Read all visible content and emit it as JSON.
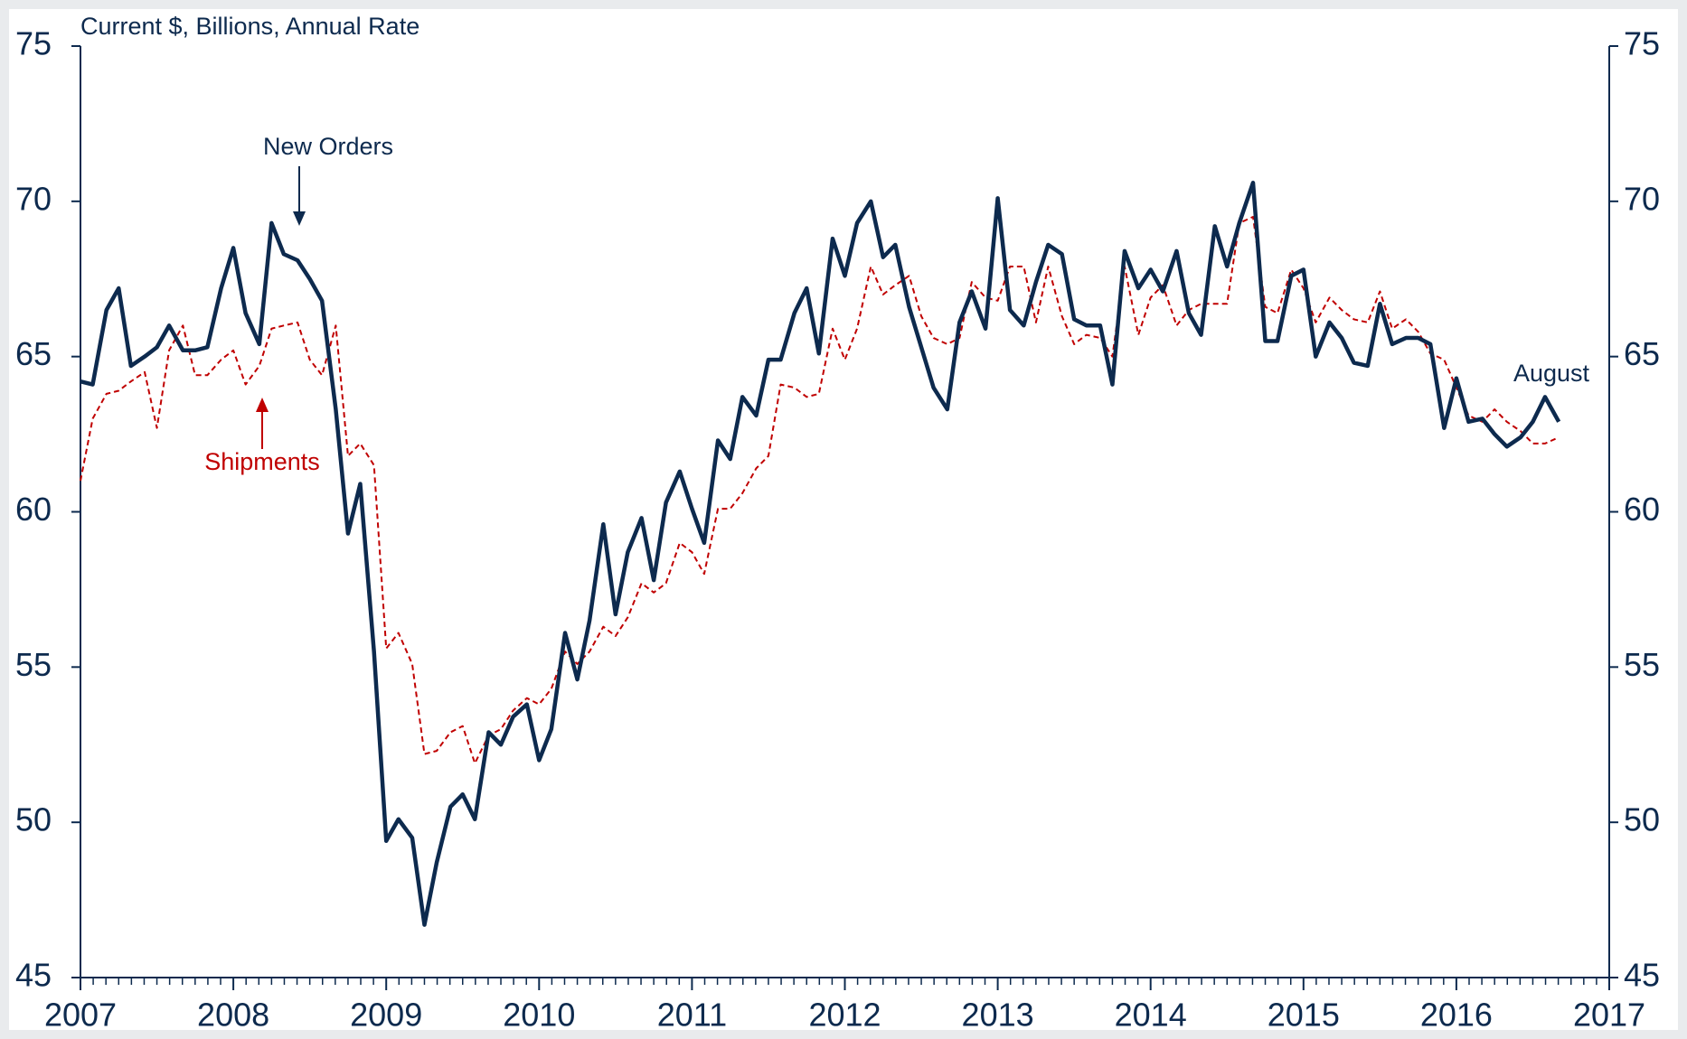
{
  "chart_data": {
    "type": "line",
    "y_label": "Current $, Billions, Annual Rate",
    "annotations": {
      "new_orders": "New Orders",
      "shipments": "Shipments",
      "latest": "August"
    },
    "x": [
      2007,
      2007.08,
      2007.17,
      2007.25,
      2007.33,
      2007.42,
      2007.5,
      2007.58,
      2007.67,
      2007.75,
      2007.83,
      2007.92,
      2008,
      2008.08,
      2008.17,
      2008.25,
      2008.33,
      2008.42,
      2008.5,
      2008.58,
      2008.67,
      2008.75,
      2008.83,
      2008.92,
      2009,
      2009.08,
      2009.17,
      2009.25,
      2009.33,
      2009.42,
      2009.5,
      2009.58,
      2009.67,
      2009.75,
      2009.83,
      2009.92,
      2010,
      2010.08,
      2010.17,
      2010.25,
      2010.33,
      2010.42,
      2010.5,
      2010.58,
      2010.67,
      2010.75,
      2010.83,
      2010.92,
      2011,
      2011.08,
      2011.17,
      2011.25,
      2011.33,
      2011.42,
      2011.5,
      2011.58,
      2011.67,
      2011.75,
      2011.83,
      2011.92,
      2012,
      2012.08,
      2012.17,
      2012.25,
      2012.33,
      2012.42,
      2012.5,
      2012.58,
      2012.67,
      2012.75,
      2012.83,
      2012.92,
      2013,
      2013.08,
      2013.17,
      2013.25,
      2013.33,
      2013.42,
      2013.5,
      2013.58,
      2013.67,
      2013.75,
      2013.83,
      2013.92,
      2014,
      2014.08,
      2014.17,
      2014.25,
      2014.33,
      2014.42,
      2014.5,
      2014.58,
      2014.67,
      2014.75,
      2014.83,
      2014.92,
      2015,
      2015.08,
      2015.17,
      2015.25,
      2015.33,
      2015.42,
      2015.5,
      2015.58,
      2015.67,
      2015.75,
      2015.83,
      2015.92,
      2016,
      2016.08,
      2016.17,
      2016.25,
      2016.33,
      2016.42,
      2016.5,
      2016.58,
      2016.67
    ],
    "series": [
      {
        "name": "New Orders",
        "color": "#0d2a4e",
        "style": "solid",
        "values": [
          64.2,
          64.1,
          66.5,
          67.2,
          64.7,
          65.0,
          65.3,
          66.0,
          65.2,
          65.2,
          65.3,
          67.2,
          68.5,
          66.4,
          65.4,
          69.3,
          68.3,
          68.1,
          67.5,
          66.8,
          63.3,
          59.3,
          60.9,
          55.5,
          49.4,
          50.1,
          49.5,
          46.7,
          48.7,
          50.5,
          50.9,
          50.1,
          52.9,
          52.5,
          53.4,
          53.8,
          52.0,
          53.0,
          56.1,
          54.6,
          56.5,
          59.6,
          56.7,
          58.7,
          59.8,
          57.8,
          60.3,
          61.3,
          60.1,
          59.0,
          62.3,
          61.7,
          63.7,
          63.1,
          64.9,
          64.9,
          66.4,
          67.2,
          65.1,
          68.8,
          67.6,
          69.3,
          70.0,
          68.2,
          68.6,
          66.6,
          65.3,
          64.0,
          63.3,
          66.1,
          67.1,
          65.9,
          70.1,
          66.5,
          66.0,
          67.4,
          68.6,
          68.3,
          66.2,
          66.0,
          66.0,
          64.1,
          68.4,
          67.2,
          67.8,
          67.1,
          68.4,
          66.4,
          65.7,
          69.2,
          67.9,
          69.3,
          70.6,
          65.5,
          65.5,
          67.6,
          67.8,
          65.0,
          66.1,
          65.6,
          64.8,
          64.7,
          66.7,
          65.4,
          65.6,
          65.6,
          65.4,
          62.7,
          64.3,
          62.9,
          63.0,
          62.5,
          62.1,
          62.4,
          62.9,
          63.7,
          62.9
        ]
      },
      {
        "name": "Shipments",
        "color": "#c00000",
        "style": "dashed",
        "values": [
          61.0,
          63.0,
          63.8,
          63.9,
          64.2,
          64.5,
          62.7,
          65.2,
          66.0,
          64.4,
          64.4,
          64.9,
          65.2,
          64.1,
          64.7,
          65.9,
          66.0,
          66.1,
          64.9,
          64.4,
          66.0,
          61.8,
          62.2,
          61.5,
          55.6,
          56.1,
          55.1,
          52.2,
          52.3,
          52.9,
          53.1,
          51.9,
          52.8,
          53.0,
          53.6,
          54.0,
          53.8,
          54.3,
          55.5,
          55.1,
          55.5,
          56.3,
          56.0,
          56.6,
          57.7,
          57.4,
          57.7,
          59.0,
          58.7,
          58.0,
          60.1,
          60.1,
          60.6,
          61.4,
          61.8,
          64.1,
          64.0,
          63.7,
          63.8,
          65.9,
          64.9,
          65.9,
          67.9,
          67.0,
          67.3,
          67.6,
          66.3,
          65.6,
          65.4,
          65.6,
          67.4,
          66.9,
          66.8,
          67.9,
          67.9,
          66.1,
          67.9,
          66.3,
          65.4,
          65.7,
          65.6,
          65.0,
          67.9,
          65.7,
          66.9,
          67.3,
          66.0,
          66.5,
          66.7,
          66.7,
          66.7,
          69.3,
          69.5,
          66.6,
          66.4,
          67.8,
          67.2,
          66.1,
          66.9,
          66.5,
          66.2,
          66.1,
          67.1,
          65.9,
          66.2,
          65.8,
          65.1,
          64.9,
          64.0,
          63.1,
          62.9,
          63.3,
          62.9,
          62.6,
          62.2,
          62.2,
          62.4
        ]
      }
    ],
    "xlim": [
      2007,
      2017
    ],
    "xticks": [
      2007,
      2008,
      2009,
      2010,
      2011,
      2012,
      2013,
      2014,
      2015,
      2016,
      2017
    ],
    "ylim": [
      45,
      75
    ],
    "yticks": [
      45,
      50,
      55,
      60,
      65,
      70,
      75
    ],
    "y2lim": [
      45,
      75
    ],
    "y2ticks": [
      45,
      50,
      55,
      60,
      65,
      70,
      75
    ],
    "grid": false
  }
}
